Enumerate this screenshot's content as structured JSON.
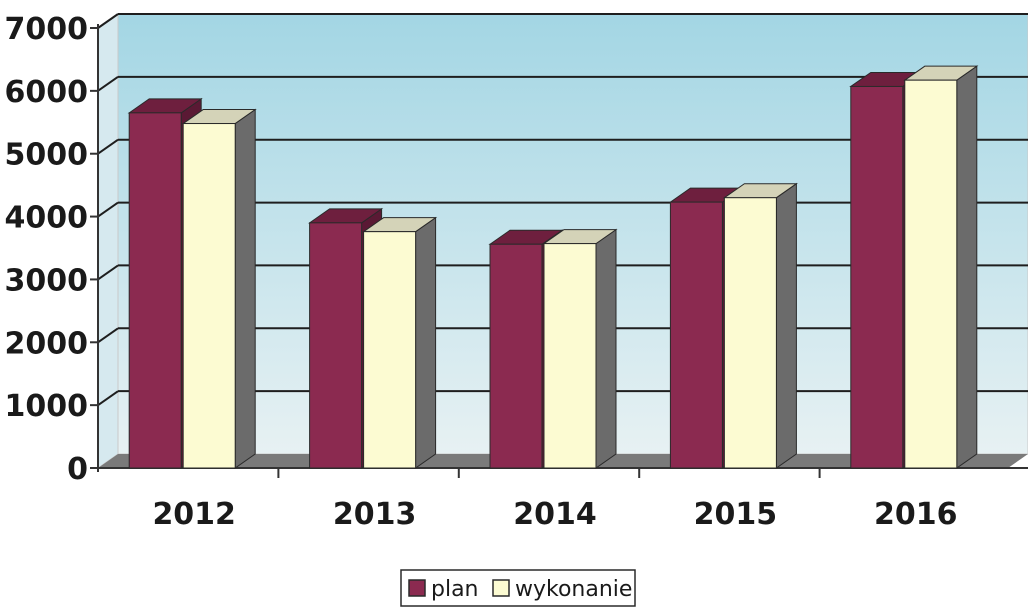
{
  "chart_data": {
    "type": "bar",
    "categories": [
      "2012",
      "2013",
      "2014",
      "2015",
      "2016"
    ],
    "series": [
      {
        "name": "plan",
        "values": [
          5650,
          3900,
          3560,
          4230,
          6070
        ]
      },
      {
        "name": "wykonanie",
        "values": [
          5480,
          3760,
          3570,
          4300,
          6170
        ]
      }
    ],
    "yticks": [
      "0",
      "1000",
      "2000",
      "3000",
      "4000",
      "5000",
      "6000",
      "7000"
    ],
    "ylim": [
      0,
      7000
    ],
    "grid": true,
    "legend_position": "bottom"
  },
  "colors": {
    "plan_front": "#8b2a50",
    "plan_top": "#6e1f3e",
    "plan_side": "#5a1934",
    "wykonanie_front": "#fcfbd2",
    "wykonanie_top": "#d4d3b8",
    "wykonanie_side": "#6b6b6b",
    "wall_top": "#a3d6e4",
    "wall_bottom": "#e7f1f3",
    "floor": "#7a7a7a",
    "gridline": "#1e1e1e"
  }
}
